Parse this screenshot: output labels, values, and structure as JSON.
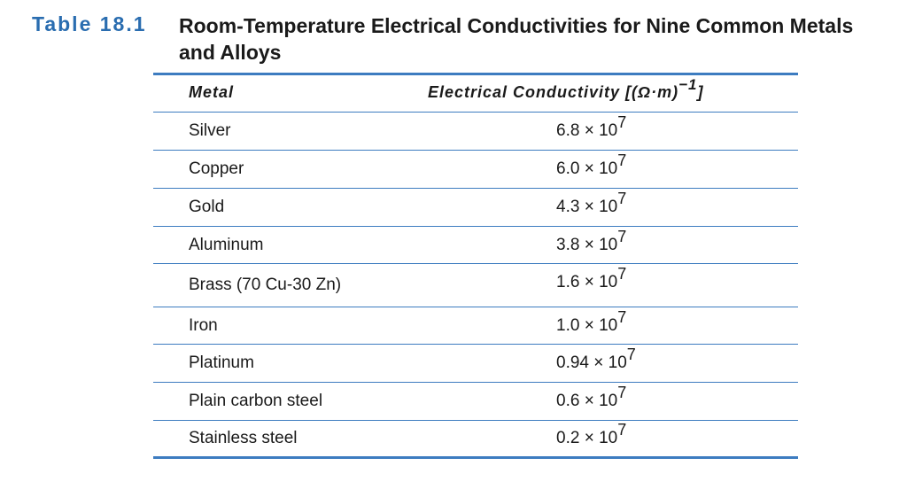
{
  "caption": {
    "label": "Table 18.1",
    "title": "Room-Temperature Electrical Conductivities for Nine Common Metals and Alloys"
  },
  "header": {
    "metal": "Metal",
    "conductivity_base": "Electrical Conductivity [(Ω·m)",
    "conductivity_exp": "−1",
    "conductivity_close": "]"
  },
  "rows": [
    {
      "metal": "Silver",
      "mantissa": "6.8 × 10",
      "exponent": "7"
    },
    {
      "metal": "Copper",
      "mantissa": "6.0 × 10",
      "exponent": "7"
    },
    {
      "metal": "Gold",
      "mantissa": "4.3 × 10",
      "exponent": "7"
    },
    {
      "metal": "Aluminum",
      "mantissa": "3.8 × 10",
      "exponent": "7"
    },
    {
      "metal": "Brass (70 Cu-30 Zn)",
      "mantissa": "1.6 × 10",
      "exponent": "7"
    },
    {
      "metal": "Iron",
      "mantissa": "1.0 × 10",
      "exponent": "7"
    },
    {
      "metal": "Platinum",
      "mantissa": "0.94 × 10",
      "exponent": "7"
    },
    {
      "metal": "Plain carbon steel",
      "mantissa": "0.6 × 10",
      "exponent": "7"
    },
    {
      "metal": "Stainless steel",
      "mantissa": "0.2 × 10",
      "exponent": "7"
    }
  ],
  "colors": {
    "accent": "#2a6db0",
    "rule": "#3d7cc0",
    "text": "#1a1a1a"
  }
}
